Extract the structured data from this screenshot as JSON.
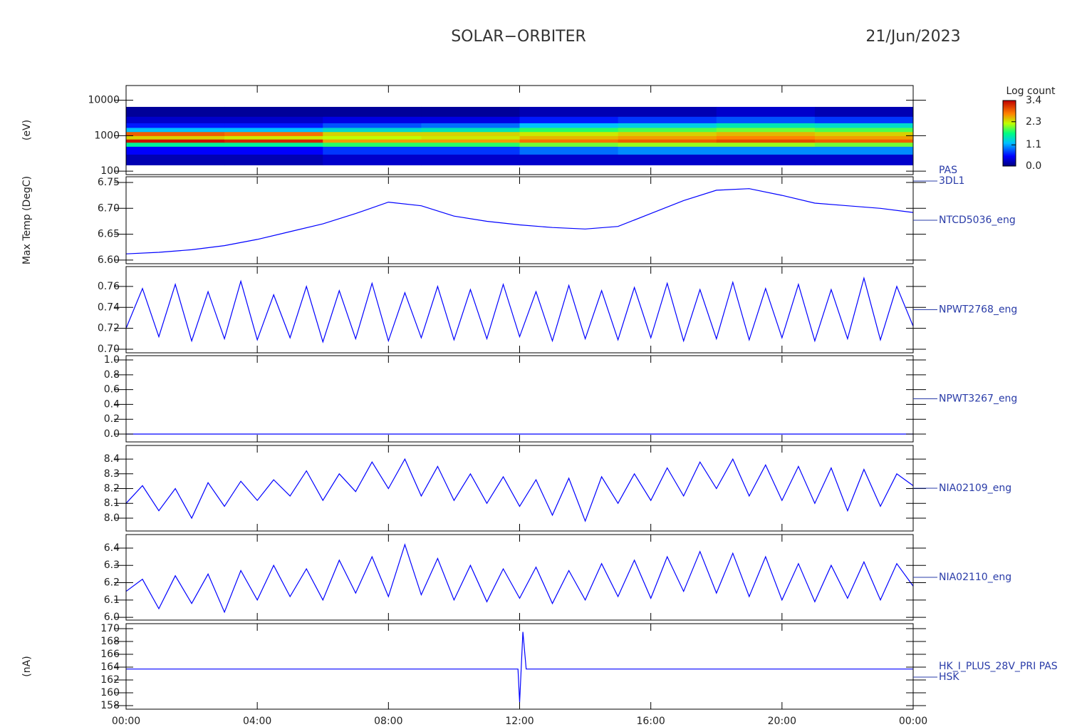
{
  "title": "SOLAR−ORBITER",
  "date": "21/Jun/2023",
  "chart_data": [
    {
      "type": "heatmap",
      "ylabel": "(eV)",
      "label": [
        "PAS",
        "3DL1"
      ],
      "log": true,
      "x": [
        0,
        3,
        6,
        9,
        12,
        15,
        18,
        21,
        24
      ],
      "y": [
        150,
        300,
        500,
        650,
        800,
        1000,
        1300,
        1700,
        2300,
        3500,
        6500
      ],
      "values": [
        [
          0.2,
          0.2,
          0.3,
          0.3,
          0.3,
          0.3,
          0.3,
          0.3
        ],
        [
          0.5,
          0.5,
          0.7,
          0.7,
          0.9,
          1.0,
          1.0,
          1.0
        ],
        [
          1.6,
          1.6,
          1.8,
          1.8,
          2.0,
          2.1,
          2.1,
          2.0
        ],
        [
          3.3,
          3.2,
          2.6,
          2.6,
          2.8,
          2.9,
          3.0,
          2.9
        ],
        [
          2.4,
          2.3,
          2.2,
          2.3,
          2.5,
          2.6,
          2.7,
          2.6
        ],
        [
          2.9,
          2.8,
          2.4,
          2.4,
          2.3,
          2.4,
          2.5,
          2.4
        ],
        [
          1.2,
          1.2,
          1.4,
          1.5,
          1.8,
          1.9,
          2.0,
          1.9
        ],
        [
          0.6,
          0.6,
          0.8,
          0.9,
          1.2,
          1.3,
          1.5,
          1.4
        ],
        [
          0.3,
          0.3,
          0.4,
          0.4,
          0.6,
          0.7,
          0.8,
          0.7
        ],
        [
          0.1,
          0.1,
          0.1,
          0.1,
          0.2,
          0.2,
          0.3,
          0.2
        ]
      ],
      "xlim": [
        0,
        24
      ],
      "ylim": [
        80,
        26000
      ],
      "yticks": [
        100,
        1000,
        10000
      ],
      "colorbar_title": "Log count",
      "zlim": [
        0,
        3.4
      ],
      "zticks": [
        3.4,
        2.3,
        1.1,
        {
          "value": 0,
          "label": "0.0"
        }
      ]
    },
    {
      "type": "line",
      "ylabel": "Max Temp (DegC)",
      "label": [
        "NTCD5036_eng"
      ],
      "color": "#0000ff",
      "x": [
        0,
        1,
        2,
        3,
        4,
        5,
        6,
        7,
        8,
        9,
        10,
        11,
        12,
        13,
        14,
        15,
        16,
        17,
        18,
        19,
        20,
        21,
        22,
        23,
        24
      ],
      "values": [
        6.612,
        6.615,
        6.62,
        6.628,
        6.64,
        6.655,
        6.67,
        6.69,
        6.712,
        6.705,
        6.685,
        6.675,
        6.668,
        6.663,
        6.66,
        6.665,
        6.69,
        6.715,
        6.735,
        6.738,
        6.725,
        6.71,
        6.705,
        6.7,
        6.692
      ],
      "xlim": [
        0,
        24
      ],
      "ylim": [
        6.593,
        6.761
      ],
      "yticks": [
        {
          "value": 6.6,
          "label": "6.60"
        },
        6.65,
        {
          "value": 6.7,
          "label": "6.70"
        },
        6.75
      ]
    },
    {
      "type": "line",
      "label": [
        "NPWT2768_eng"
      ],
      "color": "#0000ff",
      "x": [
        0,
        0.5,
        1,
        1.5,
        2,
        2.5,
        3,
        3.5,
        4,
        4.5,
        5,
        5.5,
        6,
        6.5,
        7,
        7.5,
        8,
        8.5,
        9,
        9.5,
        10,
        10.5,
        11,
        11.5,
        12,
        12.5,
        13,
        13.5,
        14,
        14.5,
        15,
        15.5,
        16,
        16.5,
        17,
        17.5,
        18,
        18.5,
        19,
        19.5,
        20,
        20.5,
        21,
        21.5,
        22,
        22.5,
        23,
        23.5,
        24
      ],
      "values": [
        0.72,
        0.758,
        0.712,
        0.762,
        0.708,
        0.755,
        0.71,
        0.765,
        0.709,
        0.752,
        0.711,
        0.76,
        0.707,
        0.756,
        0.71,
        0.763,
        0.708,
        0.754,
        0.711,
        0.76,
        0.709,
        0.757,
        0.71,
        0.762,
        0.712,
        0.755,
        0.708,
        0.761,
        0.71,
        0.756,
        0.709,
        0.759,
        0.711,
        0.763,
        0.708,
        0.757,
        0.71,
        0.764,
        0.709,
        0.758,
        0.711,
        0.762,
        0.708,
        0.757,
        0.71,
        0.768,
        0.709,
        0.76,
        0.722
      ],
      "xlim": [
        0,
        24
      ],
      "ylim": [
        0.6966,
        0.779
      ],
      "yticks": [
        {
          "value": 0.7,
          "label": "0.70"
        },
        0.72,
        0.74,
        0.76
      ]
    },
    {
      "type": "line",
      "label": [
        "NPWT3267_eng"
      ],
      "color": "#0000ff",
      "x": [
        0,
        1,
        2,
        3,
        4,
        5,
        6,
        7,
        8,
        9,
        10,
        11,
        12,
        13,
        14,
        15,
        16,
        17,
        18,
        19,
        20,
        21,
        22,
        23,
        24
      ],
      "values": [
        0,
        0,
        0,
        0,
        0,
        0,
        0,
        0,
        0,
        0,
        0,
        0,
        0,
        0,
        0,
        0,
        0,
        0,
        0,
        0,
        0,
        0,
        0,
        0,
        0
      ],
      "xlim": [
        0,
        24
      ],
      "ylim": [
        -0.106,
        1.058
      ],
      "yticks": [
        {
          "value": 0,
          "label": "0.0"
        },
        0.2,
        0.4,
        0.6,
        0.8,
        {
          "value": 1,
          "label": "1.0"
        }
      ]
    },
    {
      "type": "line",
      "label": [
        "NIA02109_eng"
      ],
      "color": "#0000ff",
      "x": [
        0,
        0.5,
        1,
        1.5,
        2,
        2.5,
        3,
        3.5,
        4,
        4.5,
        5,
        5.5,
        6,
        6.5,
        7,
        7.5,
        8,
        8.5,
        9,
        9.5,
        10,
        10.5,
        11,
        11.5,
        12,
        12.5,
        13,
        13.5,
        14,
        14.5,
        15,
        15.5,
        16,
        16.5,
        17,
        17.5,
        18,
        18.5,
        19,
        19.5,
        20,
        20.5,
        21,
        21.5,
        22,
        22.5,
        23,
        23.5,
        24
      ],
      "values": [
        8.1,
        8.22,
        8.05,
        8.2,
        8.0,
        8.24,
        8.08,
        8.25,
        8.12,
        8.26,
        8.15,
        8.32,
        8.12,
        8.3,
        8.18,
        8.38,
        8.2,
        8.4,
        8.15,
        8.35,
        8.12,
        8.3,
        8.1,
        8.28,
        8.08,
        8.26,
        8.02,
        8.27,
        7.98,
        8.28,
        8.1,
        8.3,
        8.12,
        8.34,
        8.15,
        8.38,
        8.2,
        8.4,
        8.15,
        8.36,
        8.12,
        8.35,
        8.1,
        8.34,
        8.05,
        8.33,
        8.08,
        8.3,
        8.22
      ],
      "xlim": [
        0,
        24
      ],
      "ylim": [
        7.913,
        8.492
      ],
      "yticks": [
        {
          "value": 8,
          "label": "8.0"
        },
        8.1,
        8.2,
        8.3,
        8.4
      ]
    },
    {
      "type": "line",
      "label": [
        "NIA02110_eng"
      ],
      "color": "#0000ff",
      "x": [
        0,
        0.5,
        1,
        1.5,
        2,
        2.5,
        3,
        3.5,
        4,
        4.5,
        5,
        5.5,
        6,
        6.5,
        7,
        7.5,
        8,
        8.5,
        9,
        9.5,
        10,
        10.5,
        11,
        11.5,
        12,
        12.5,
        13,
        13.5,
        14,
        14.5,
        15,
        15.5,
        16,
        16.5,
        17,
        17.5,
        18,
        18.5,
        19,
        19.5,
        20,
        20.5,
        21,
        21.5,
        22,
        22.5,
        23,
        23.5,
        24
      ],
      "values": [
        6.15,
        6.22,
        6.05,
        6.24,
        6.08,
        6.25,
        6.03,
        6.27,
        6.1,
        6.3,
        6.12,
        6.28,
        6.1,
        6.33,
        6.14,
        6.35,
        6.12,
        6.42,
        6.13,
        6.34,
        6.1,
        6.3,
        6.09,
        6.28,
        6.11,
        6.29,
        6.08,
        6.27,
        6.1,
        6.31,
        6.12,
        6.33,
        6.11,
        6.35,
        6.15,
        6.38,
        6.14,
        6.37,
        6.12,
        6.35,
        6.1,
        6.31,
        6.09,
        6.3,
        6.11,
        6.32,
        6.1,
        6.31,
        6.18
      ],
      "xlim": [
        0,
        24
      ],
      "ylim": [
        5.984,
        6.478
      ],
      "yticks": [
        {
          "value": 6,
          "label": "6.0"
        },
        6.1,
        6.2,
        6.3,
        6.4
      ]
    },
    {
      "type": "line",
      "ylabel": "(nA)",
      "label": [
        "HK_I_PLUS_28V_PRI PAS",
        "HSK"
      ],
      "color": "#0000ff",
      "x": [
        0,
        1,
        2,
        3,
        4,
        5,
        6,
        7,
        8,
        9,
        10,
        11,
        11.95,
        12.0,
        12.1,
        12.2,
        13,
        14,
        15,
        16,
        17,
        18,
        19,
        20,
        21,
        22,
        23,
        24
      ],
      "values": [
        163.7,
        163.7,
        163.7,
        163.7,
        163.7,
        163.7,
        163.7,
        163.7,
        163.7,
        163.7,
        163.7,
        163.7,
        163.7,
        158.5,
        169.5,
        163.7,
        163.7,
        163.7,
        163.7,
        163.7,
        163.7,
        163.7,
        163.7,
        163.7,
        163.7,
        163.7,
        163.7,
        163.7
      ],
      "xlim": [
        0,
        24
      ],
      "ylim": [
        157.44,
        170.78
      ],
      "yticks": [
        158,
        160,
        162,
        164,
        166,
        168,
        170
      ],
      "xticks": [
        {
          "value": 0,
          "label": "00:00"
        },
        {
          "value": 4,
          "label": "04:00"
        },
        {
          "value": 8,
          "label": "08:00"
        },
        {
          "value": 12,
          "label": "12:00"
        },
        {
          "value": 16,
          "label": "16:00"
        },
        {
          "value": 20,
          "label": "20:00"
        },
        {
          "value": 24,
          "label": "00:00"
        }
      ]
    }
  ]
}
